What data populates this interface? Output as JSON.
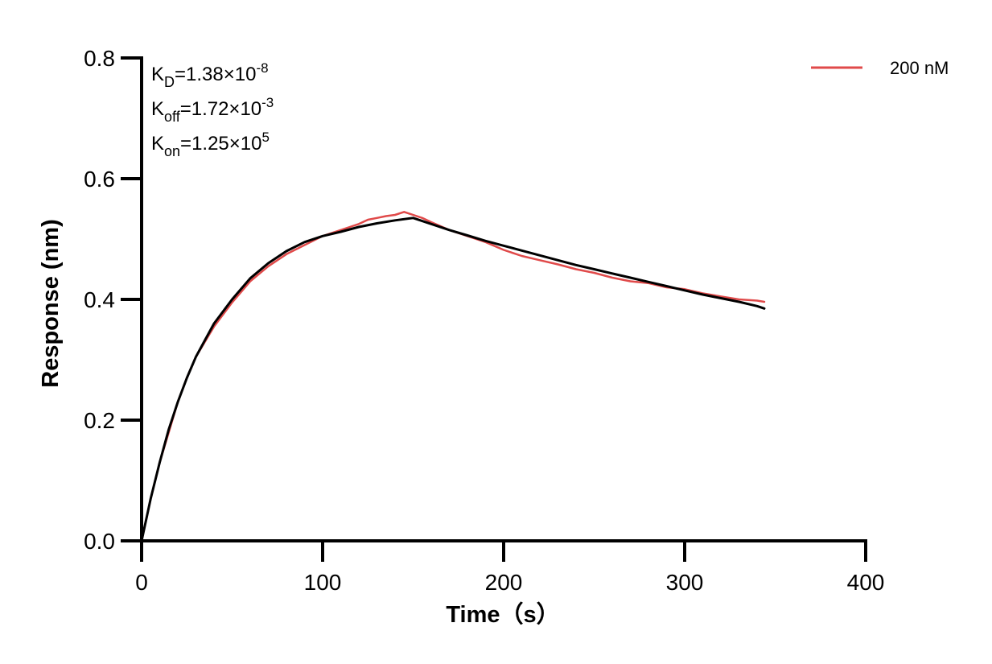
{
  "chart_data": {
    "type": "line",
    "title": "",
    "xlabel": "Time（s）",
    "ylabel": "Response (nm)",
    "xlim": [
      0,
      400
    ],
    "ylim": [
      0,
      0.8
    ],
    "xticks": [
      0,
      100,
      200,
      300,
      400
    ],
    "xtick_labels": [
      "0",
      "100",
      "200",
      "300",
      "400"
    ],
    "yticks": [
      0,
      0.2,
      0.4,
      0.6,
      0.8
    ],
    "ytick_labels": [
      "0.0",
      "0.2",
      "0.4",
      "0.6",
      "0.8"
    ],
    "grid": false,
    "legend_position": "top-right",
    "annotations": [
      {
        "base": "K",
        "sub": "D",
        "eq": "=1.38×10",
        "sup": "-8"
      },
      {
        "base": "K",
        "sub": "off",
        "eq": "=1.72×10",
        "sup": "-3"
      },
      {
        "base": "K",
        "sub": "on",
        "eq": "=1.25×10",
        "sup": "5"
      }
    ],
    "series": [
      {
        "name": "200 nM",
        "color": "#e04a4a",
        "kind": "measured",
        "x": [
          0,
          5,
          10,
          15,
          20,
          25,
          30,
          40,
          50,
          60,
          70,
          80,
          90,
          100,
          110,
          115,
          120,
          125,
          130,
          135,
          140,
          145,
          150,
          155,
          160,
          170,
          180,
          190,
          200,
          210,
          220,
          230,
          240,
          250,
          260,
          270,
          280,
          290,
          300,
          310,
          320,
          330,
          340,
          344
        ],
        "y": [
          0.0,
          0.07,
          0.13,
          0.18,
          0.23,
          0.27,
          0.305,
          0.355,
          0.395,
          0.43,
          0.455,
          0.475,
          0.49,
          0.505,
          0.515,
          0.52,
          0.525,
          0.532,
          0.535,
          0.538,
          0.54,
          0.545,
          0.54,
          0.535,
          0.528,
          0.515,
          0.505,
          0.495,
          0.482,
          0.472,
          0.465,
          0.458,
          0.45,
          0.444,
          0.436,
          0.43,
          0.427,
          0.42,
          0.417,
          0.41,
          0.405,
          0.4,
          0.398,
          0.396
        ]
      },
      {
        "name": "",
        "color": "#000000",
        "kind": "fit",
        "x": [
          0,
          5,
          10,
          15,
          20,
          25,
          30,
          40,
          50,
          60,
          70,
          80,
          90,
          100,
          110,
          120,
          130,
          140,
          150,
          160,
          170,
          180,
          190,
          200,
          210,
          220,
          230,
          240,
          250,
          260,
          270,
          280,
          290,
          300,
          310,
          320,
          330,
          340,
          344
        ],
        "y": [
          0.0,
          0.07,
          0.13,
          0.185,
          0.23,
          0.27,
          0.305,
          0.36,
          0.4,
          0.435,
          0.46,
          0.48,
          0.495,
          0.505,
          0.512,
          0.52,
          0.526,
          0.531,
          0.535,
          0.525,
          0.515,
          0.506,
          0.497,
          0.489,
          0.481,
          0.473,
          0.465,
          0.457,
          0.45,
          0.443,
          0.436,
          0.429,
          0.422,
          0.415,
          0.408,
          0.402,
          0.396,
          0.389,
          0.385
        ]
      }
    ]
  }
}
